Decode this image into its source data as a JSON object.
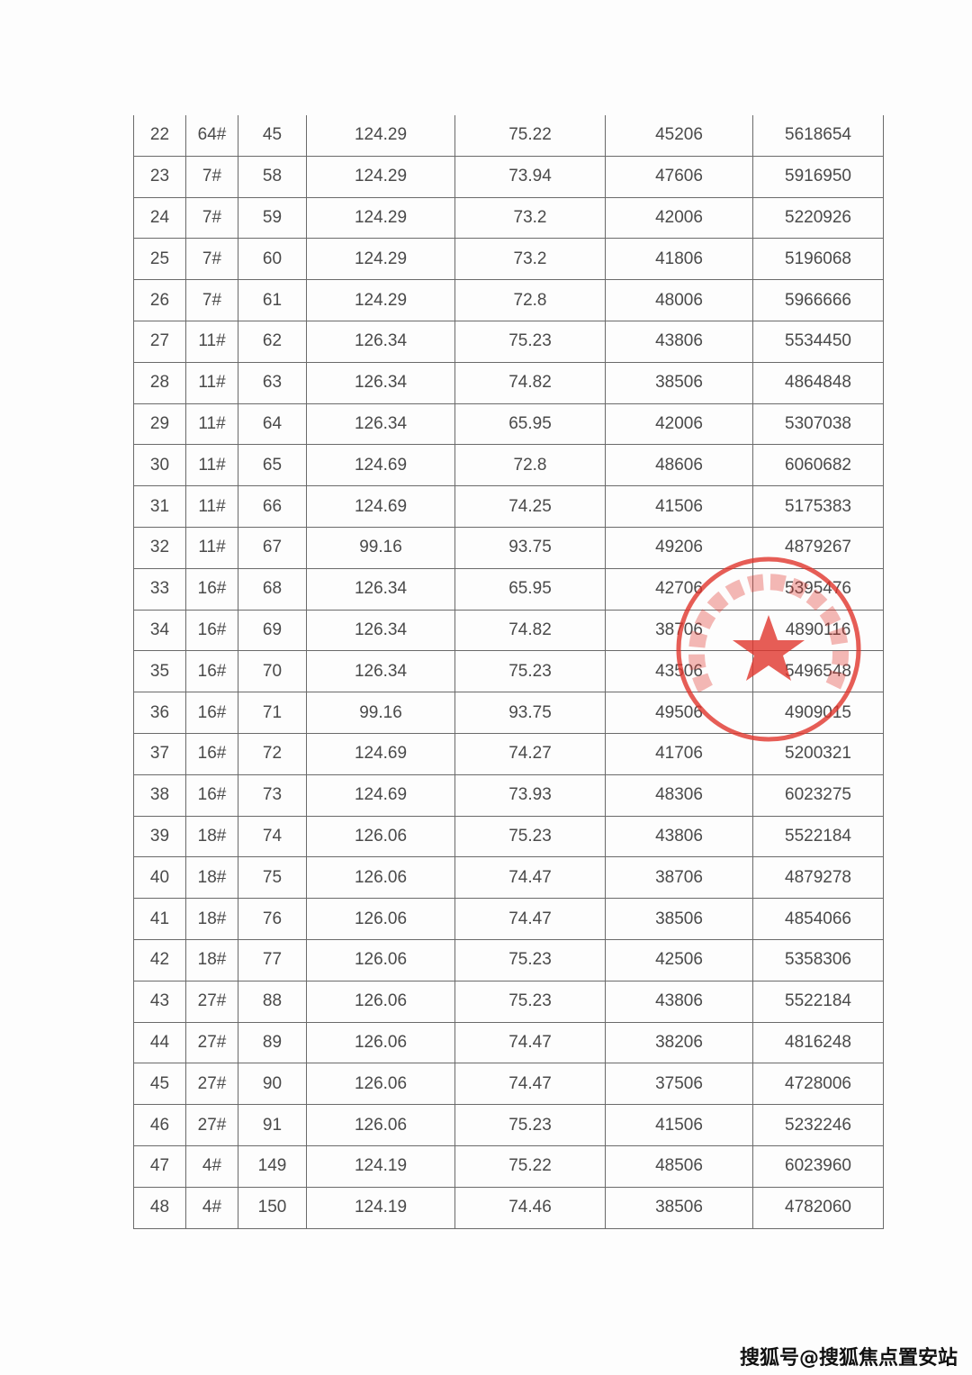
{
  "table": {
    "rows": [
      [
        "22",
        "64#",
        "45",
        "124.29",
        "75.22",
        "45206",
        "5618654"
      ],
      [
        "23",
        "7#",
        "58",
        "124.29",
        "73.94",
        "47606",
        "5916950"
      ],
      [
        "24",
        "7#",
        "59",
        "124.29",
        "73.2",
        "42006",
        "5220926"
      ],
      [
        "25",
        "7#",
        "60",
        "124.29",
        "73.2",
        "41806",
        "5196068"
      ],
      [
        "26",
        "7#",
        "61",
        "124.29",
        "72.8",
        "48006",
        "5966666"
      ],
      [
        "27",
        "11#",
        "62",
        "126.34",
        "75.23",
        "43806",
        "5534450"
      ],
      [
        "28",
        "11#",
        "63",
        "126.34",
        "74.82",
        "38506",
        "4864848"
      ],
      [
        "29",
        "11#",
        "64",
        "126.34",
        "65.95",
        "42006",
        "5307038"
      ],
      [
        "30",
        "11#",
        "65",
        "124.69",
        "72.8",
        "48606",
        "6060682"
      ],
      [
        "31",
        "11#",
        "66",
        "124.69",
        "74.25",
        "41506",
        "5175383"
      ],
      [
        "32",
        "11#",
        "67",
        "99.16",
        "93.75",
        "49206",
        "4879267"
      ],
      [
        "33",
        "16#",
        "68",
        "126.34",
        "65.95",
        "42706",
        "5395476"
      ],
      [
        "34",
        "16#",
        "69",
        "126.34",
        "74.82",
        "38706",
        "4890116"
      ],
      [
        "35",
        "16#",
        "70",
        "126.34",
        "75.23",
        "43506",
        "5496548"
      ],
      [
        "36",
        "16#",
        "71",
        "99.16",
        "93.75",
        "49506",
        "4909015"
      ],
      [
        "37",
        "16#",
        "72",
        "124.69",
        "74.27",
        "41706",
        "5200321"
      ],
      [
        "38",
        "16#",
        "73",
        "124.69",
        "73.93",
        "48306",
        "6023275"
      ],
      [
        "39",
        "18#",
        "74",
        "126.06",
        "75.23",
        "43806",
        "5522184"
      ],
      [
        "40",
        "18#",
        "75",
        "126.06",
        "74.47",
        "38706",
        "4879278"
      ],
      [
        "41",
        "18#",
        "76",
        "126.06",
        "74.47",
        "38506",
        "4854066"
      ],
      [
        "42",
        "18#",
        "77",
        "126.06",
        "75.23",
        "42506",
        "5358306"
      ],
      [
        "43",
        "27#",
        "88",
        "126.06",
        "75.23",
        "43806",
        "5522184"
      ],
      [
        "44",
        "27#",
        "89",
        "126.06",
        "74.47",
        "38206",
        "4816248"
      ],
      [
        "45",
        "27#",
        "90",
        "126.06",
        "74.47",
        "37506",
        "4728006"
      ],
      [
        "46",
        "27#",
        "91",
        "126.06",
        "75.23",
        "41506",
        "5232246"
      ],
      [
        "47",
        "4#",
        "149",
        "124.19",
        "75.22",
        "48506",
        "6023960"
      ],
      [
        "48",
        "4#",
        "150",
        "124.19",
        "74.46",
        "38506",
        "4782060"
      ]
    ]
  },
  "stamp": {
    "text": "嘉兴置业(上海)有限公司",
    "color": "#e0342c"
  },
  "watermark": "搜狐号@搜狐焦点置安站"
}
